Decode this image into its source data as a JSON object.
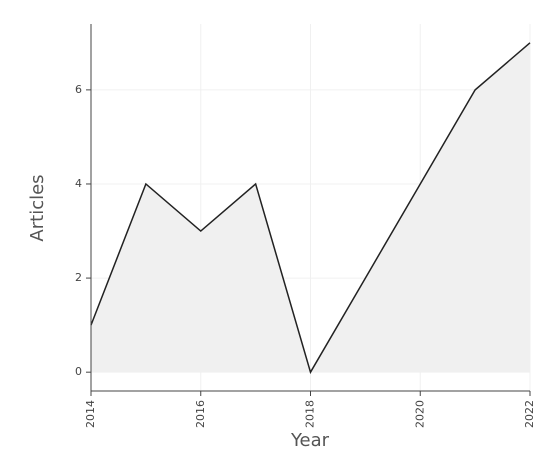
{
  "chart_data": {
    "type": "area",
    "x_label": "Year",
    "y_label": "Articles",
    "x": [
      2014,
      2015,
      2016,
      2017,
      2018,
      2019,
      2020,
      2021,
      2022
    ],
    "series": [
      {
        "values": [
          1,
          4,
          3,
          4,
          0,
          2,
          4,
          6,
          7
        ],
        "color": "#222222",
        "fill": "#f0f0f0"
      }
    ],
    "xlim": [
      2014,
      2022
    ],
    "xticks": [
      2014,
      2016,
      2018,
      2020,
      2022
    ],
    "ylim": [
      -0.4,
      7.4
    ],
    "yticks": [
      0,
      2,
      4,
      6
    ],
    "grid": true
  }
}
